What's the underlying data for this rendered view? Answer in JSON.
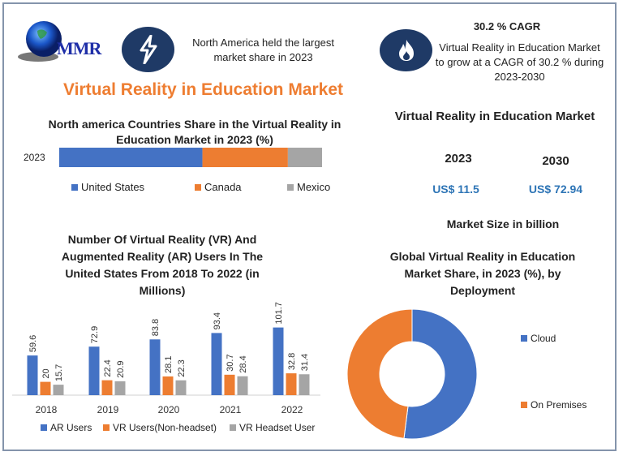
{
  "logo": {
    "text": "MMR"
  },
  "header": {
    "highlight_icon": "lightning-bolt-icon",
    "highlight_text_line1": "North America held the largest",
    "highlight_text_line2": "market share in 2023",
    "title": "Virtual Reality in Education Market"
  },
  "cagr": {
    "icon": "flame-icon",
    "heading": "30.2 % CAGR",
    "line1": "Virtual Reality in Education Market",
    "line2": "to grow at a CAGR of 30.2 % during",
    "line3": "2023-2030"
  },
  "market_size": {
    "title": "Virtual Reality in Education Market",
    "year1": "2023",
    "year2": "2030",
    "value1": "US$ 11.5",
    "value2": "US$ 72.94",
    "caption": "Market Size in billion",
    "value_color": "#2e75b6"
  },
  "chart_data": [
    {
      "type": "bar",
      "orientation": "horizontal-stacked",
      "title_line1": "North america Countries Share in the  Virtual Reality in",
      "title_line2": "Education Market in 2023 (%)",
      "categories": [
        "2023"
      ],
      "series": [
        {
          "name": "United States",
          "values": [
            54.5
          ],
          "color": "#4472c4"
        },
        {
          "name": "Canada",
          "values": [
            32.5
          ],
          "color": "#ed7d31"
        },
        {
          "name": "Mexico",
          "values": [
            13
          ],
          "color": "#a5a5a5"
        }
      ],
      "xlim": [
        0,
        100
      ],
      "legend": "bottom"
    },
    {
      "type": "bar",
      "title_line1": "Number Of Virtual Reality (VR) And",
      "title_line2": "Augmented Reality (AR) Users In The",
      "title_line3": "United States From 2018 To 2022 (in",
      "title_line4": "Millions)",
      "categories": [
        "2018",
        "2019",
        "2020",
        "2021",
        "2022"
      ],
      "series": [
        {
          "name": "AR Users",
          "values": [
            59.6,
            72.9,
            83.8,
            93.4,
            101.7
          ],
          "color": "#4472c4"
        },
        {
          "name": "VR Users(Non-headset)",
          "values": [
            20,
            22.4,
            28.1,
            30.7,
            32.8
          ],
          "color": "#ed7d31"
        },
        {
          "name": "VR Headset User",
          "values": [
            15.7,
            20.9,
            22.3,
            28.4,
            31.4
          ],
          "color": "#a5a5a5"
        }
      ],
      "data_labels": true,
      "legend": "bottom"
    },
    {
      "type": "pie",
      "donut": true,
      "title_line1": "Global Virtual Reality in Education",
      "title_line2": "Market Share, in 2023 (%), by",
      "title_line3": "Deployment",
      "slices": [
        {
          "name": "Cloud",
          "value": 52,
          "color": "#4472c4"
        },
        {
          "name": "On Premises",
          "value": 48,
          "color": "#ed7d31"
        }
      ],
      "legend": "right"
    }
  ]
}
